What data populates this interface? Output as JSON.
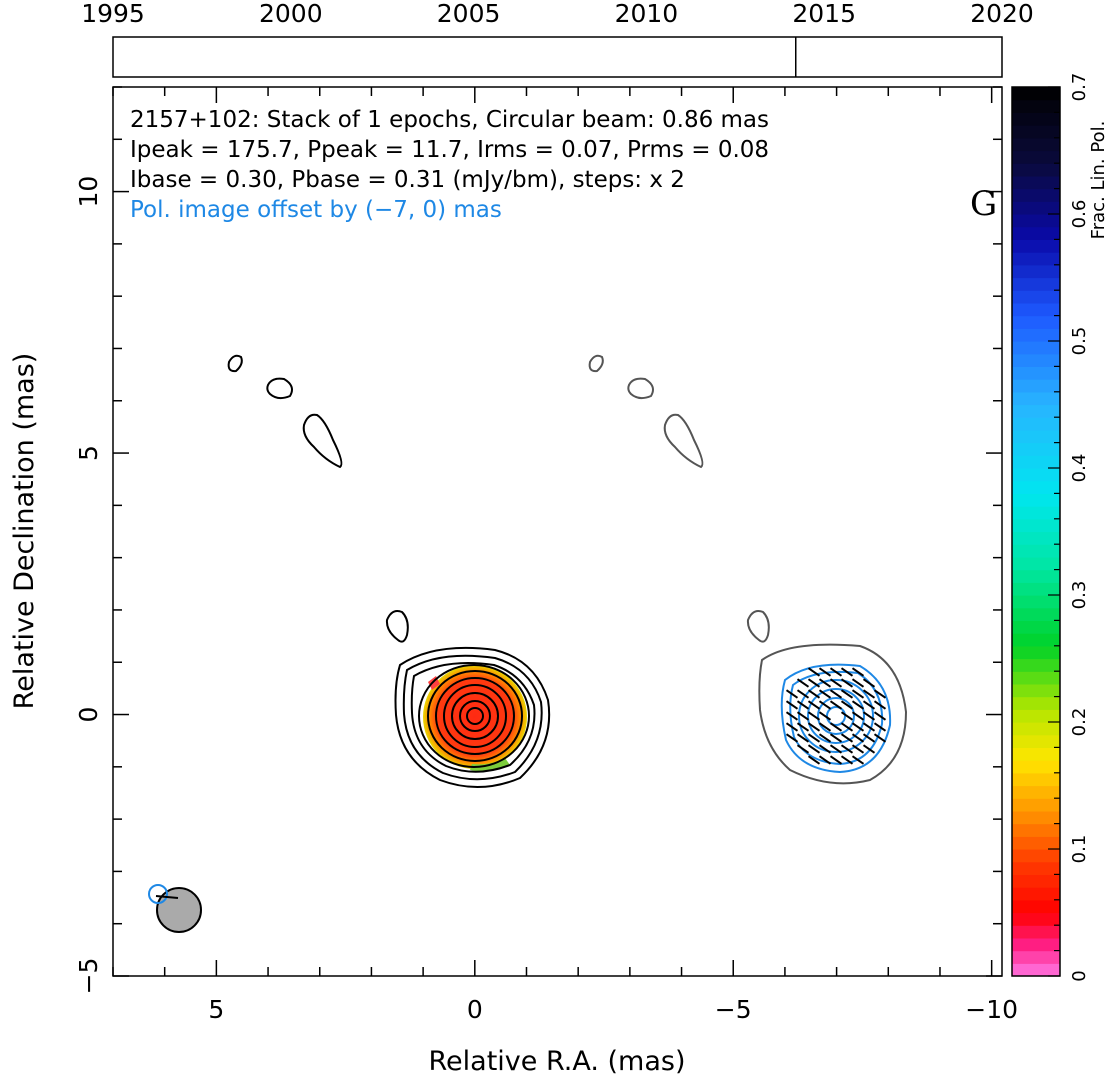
{
  "chart_data": {
    "type": "contour",
    "header_lines": [
      "2157+102: Stack of 1 epochs, Circular beam: 0.86 mas",
      "Ipeak = 175.7, Ppeak = 11.7, Irms = 0.07, Prms = 0.08",
      "Ibase = 0.30, Pbase = 0.31 (mJy/bm), steps: x 2"
    ],
    "note": "Pol. image offset by (−7, 0) mas",
    "panel_letter": "G",
    "xlabel": "Relative R.A. (mas)",
    "ylabel": "Relative Declination (mas)",
    "xlim": [
      7.0,
      -10.2
    ],
    "ylim": [
      -5.0,
      12.0
    ],
    "x_ticks": [
      5,
      0,
      -5,
      -10
    ],
    "x_tick_labels": [
      "5",
      "0",
      "−5",
      "−10"
    ],
    "y_ticks": [
      -5,
      0,
      5,
      10
    ],
    "y_tick_labels": [
      "−5",
      "0",
      "5",
      "10"
    ],
    "beam": {
      "x": 5.7,
      "y": -3.7,
      "diameter_mas": 0.86
    },
    "core_position": [
      0,
      0
    ],
    "jet_features": [
      {
        "x": 4.7,
        "y": 6.8
      },
      {
        "x": 3.7,
        "y": 6.4
      },
      {
        "x": 2.9,
        "y": 5.4
      },
      {
        "x": 1.5,
        "y": 1.8
      }
    ],
    "colorbar": {
      "label": "Frac. Lin. Pol.",
      "range": [
        0,
        0.7
      ],
      "ticks": [
        0,
        0.1,
        0.2,
        0.3,
        0.4,
        0.5,
        0.6,
        0.7
      ],
      "tick_labels": [
        "0",
        "0.1",
        "0.2",
        "0.3",
        "0.4",
        "0.5",
        "0.6",
        "0.7"
      ]
    },
    "timeline": {
      "range": [
        1995,
        2020
      ],
      "ticks": [
        1995,
        2000,
        2005,
        2010,
        2015,
        2020
      ],
      "tick_labels": [
        "1995",
        "2000",
        "2005",
        "2010",
        "2015",
        "2020"
      ],
      "epochs": [
        2014.2
      ]
    }
  }
}
